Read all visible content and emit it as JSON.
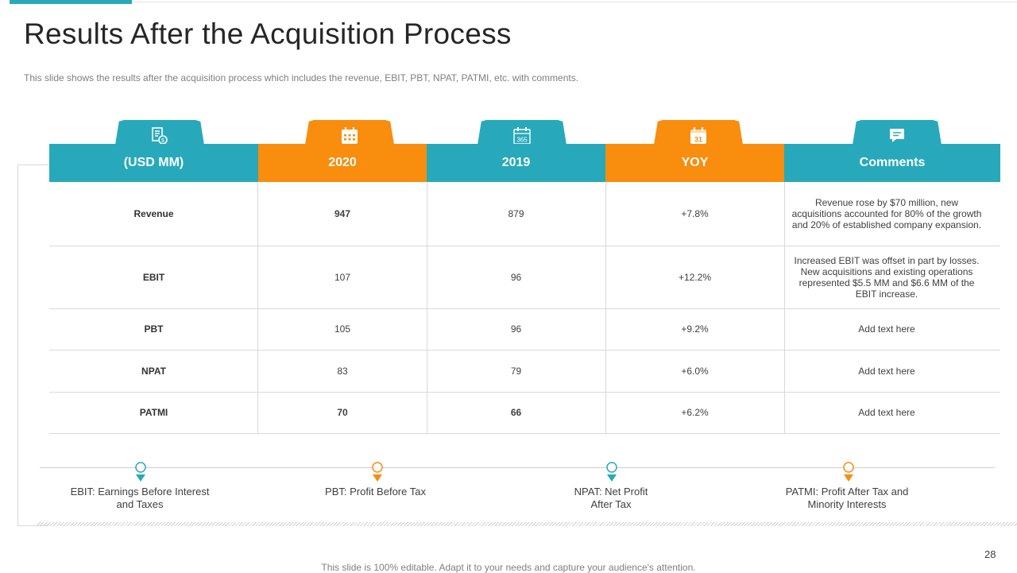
{
  "slide": {
    "title": "Results After the Acquisition Process",
    "subtitle": "This slide shows the results after the acquisition process which includes the revenue,  EBIT, PBT, NPAT, PATMI, etc. with comments.",
    "page_number": "28",
    "footer": "This slide is 100% editable. Adapt it to your needs and capture your audience's attention."
  },
  "colors": {
    "teal": "#27a9bb",
    "orange": "#f88d0e"
  },
  "table": {
    "headers": [
      {
        "label": "(USD MM)",
        "icon": "money-document-icon",
        "color": "teal"
      },
      {
        "label": "2020",
        "icon": "calendar-grid-icon",
        "color": "orange"
      },
      {
        "label": "2019",
        "icon": "calendar-365-icon",
        "color": "teal"
      },
      {
        "label": "YOY",
        "icon": "calendar-31-icon",
        "color": "orange"
      },
      {
        "label": "Comments",
        "icon": "speech-bubble-icon",
        "color": "teal"
      }
    ],
    "rows": [
      {
        "metric": "Revenue",
        "y2020": "947",
        "y2019": "879",
        "yoy": "+7.8%",
        "comment": "Revenue rose by $70 million, new acquisitions accounted for 80% of the growth and 20% of established company expansion."
      },
      {
        "metric": "EBIT",
        "y2020": "107",
        "y2019": "96",
        "yoy": "+12.2%",
        "comment": "Increased EBIT was offset in part by losses. New acquisitions and existing operations represented $5.5 MM  and $6.6 MM  of the EBIT increase."
      },
      {
        "metric": "PBT",
        "y2020": "105",
        "y2019": "96",
        "yoy": "+9.2%",
        "comment": "Add text here"
      },
      {
        "metric": "NPAT",
        "y2020": "83",
        "y2019": "79",
        "yoy": "+6.0%",
        "comment": "Add text here"
      },
      {
        "metric": "PATMI",
        "y2020": "70",
        "y2019": "66",
        "yoy": "+6.2%",
        "comment": "Add text here"
      }
    ]
  },
  "definitions": [
    {
      "text": "EBIT: Earnings Before Interest and Taxes",
      "color": "teal"
    },
    {
      "text": "PBT: Profit Before Tax",
      "color": "orange"
    },
    {
      "text": "NPAT: Net Profit After Tax",
      "color": "teal"
    },
    {
      "text": "PATMI: Profit After Tax and Minority Interests",
      "color": "orange"
    }
  ]
}
